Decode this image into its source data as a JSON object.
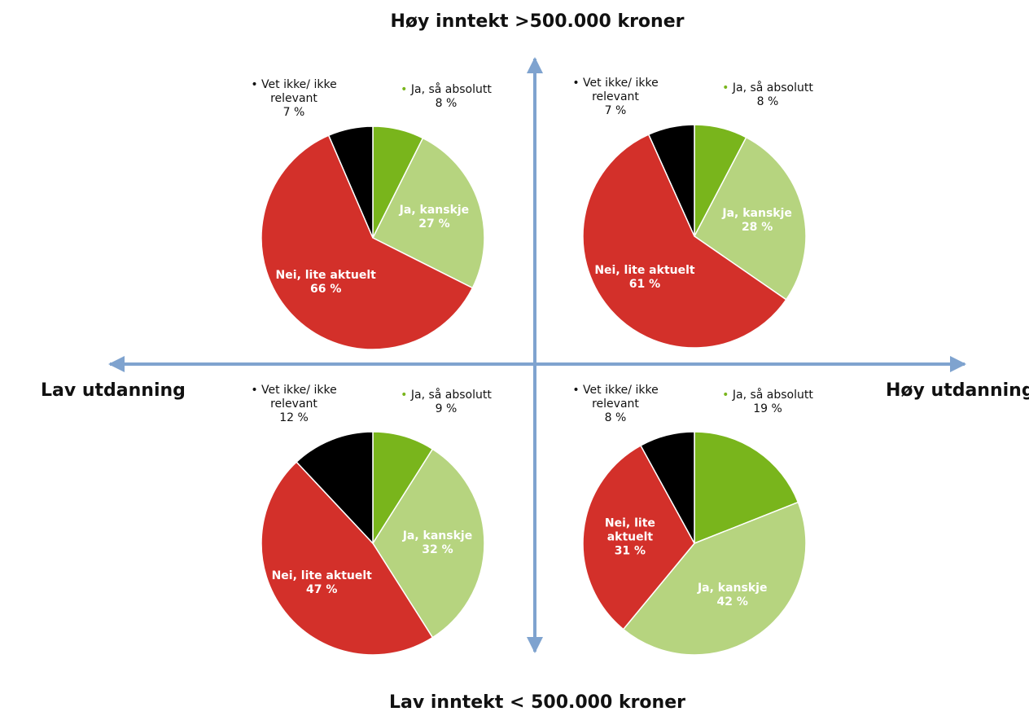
{
  "quadrant_axes": {
    "top": "Høy inntekt >500.000 kroner",
    "bottom": "Lav inntekt < 500.000 kroner",
    "left": "Lav utdanning",
    "right": "Høy utdanning"
  },
  "chart_data": [
    {
      "type": "pie",
      "categories": [
        "Ja, så absolutt",
        "Ja, kanskje",
        "Nei, lite aktuelt",
        "Vet ikke/ ikke relevant"
      ],
      "values": [
        8,
        27,
        66,
        7
      ],
      "value_labels": [
        "8 %",
        "27 %",
        "66 %",
        "7 %"
      ],
      "colors": [
        "#79b51c",
        "#b6d47f",
        "#d3302a",
        "#000000"
      ]
    },
    {
      "type": "pie",
      "categories": [
        "Ja, så absolutt",
        "Ja, kanskje",
        "Nei, lite aktuelt",
        "Vet ikke/ ikke relevant"
      ],
      "values": [
        8,
        28,
        61,
        7
      ],
      "value_labels": [
        "8 %",
        "28 %",
        "61 %",
        "7 %"
      ],
      "colors": [
        "#79b51c",
        "#b6d47f",
        "#d3302a",
        "#000000"
      ]
    },
    {
      "type": "pie",
      "categories": [
        "Ja, så absolutt",
        "Ja, kanskje",
        "Nei, lite aktuelt",
        "Vet ikke/ ikke relevant"
      ],
      "values": [
        9,
        32,
        47,
        12
      ],
      "value_labels": [
        "9 %",
        "32 %",
        "47 %",
        "12 %"
      ],
      "colors": [
        "#79b51c",
        "#b6d47f",
        "#d3302a",
        "#000000"
      ]
    },
    {
      "type": "pie",
      "categories": [
        "Ja, så absolutt",
        "Ja, kanskje",
        "Nei, lite aktuelt",
        "Vet ikke/ ikke relevant"
      ],
      "values": [
        19,
        42,
        31,
        8
      ],
      "value_labels": [
        "19 %",
        "42 %",
        "31 %",
        "8 %"
      ],
      "colors": [
        "#79b51c",
        "#b6d47f",
        "#d3302a",
        "#000000"
      ]
    }
  ]
}
